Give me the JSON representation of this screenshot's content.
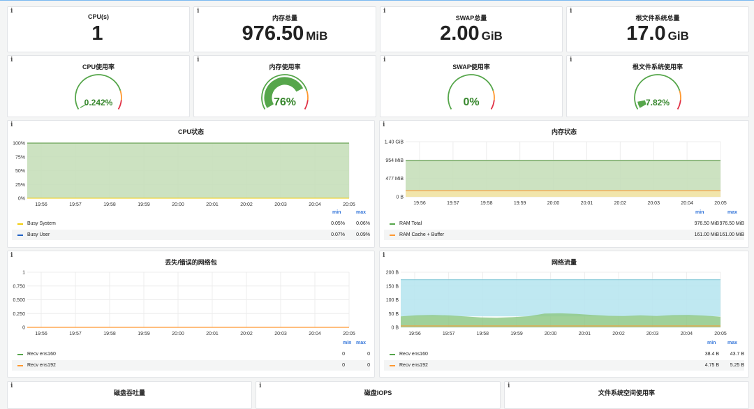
{
  "stats": [
    {
      "title": "CPU(s)",
      "value": "1",
      "unit": ""
    },
    {
      "title": "内存总量",
      "value": "976.50",
      "unit": "MiB"
    },
    {
      "title": "SWAP总量",
      "value": "2.00",
      "unit": "GiB"
    },
    {
      "title": "根文件系统总量",
      "value": "17.0",
      "unit": "GiB"
    }
  ],
  "gauges": [
    {
      "title": "CPU使用率",
      "value_text": "0.242%",
      "value": 0.242
    },
    {
      "title": "内存使用率",
      "value_text": "76%",
      "value": 76
    },
    {
      "title": "SWAP使用率",
      "value_text": "0%",
      "value": 0
    },
    {
      "title": "根文件系统使用率",
      "value_text": "7.82%",
      "value": 7.82
    }
  ],
  "info_icon": "i",
  "x_ticks": [
    "19:56",
    "19:57",
    "19:58",
    "19:59",
    "20:00",
    "20:01",
    "20:02",
    "20:03",
    "20:04",
    "20:05"
  ],
  "legend_min_label": "min",
  "legend_max_label": "max",
  "colors": {
    "green": "#56a64b",
    "yellow": "#f2cc0c",
    "orange": "#ff9830",
    "blue": "#1f60c4",
    "cyan": "#b8e6ef",
    "red": "#e02f44"
  },
  "charts": {
    "cpu": {
      "title": "CPU状态",
      "y_ticks": [
        "100%",
        "75%",
        "50%",
        "25%",
        "0%"
      ],
      "legend": [
        {
          "name": "Busy System",
          "min": "0.05%",
          "max": "0.06%",
          "color": "#f2cc0c"
        },
        {
          "name": "Busy User",
          "min": "0.07%",
          "max": "0.09%",
          "color": "#1f60c4"
        }
      ]
    },
    "mem": {
      "title": "内存状态",
      "y_ticks": [
        "1.40 GiB",
        "954 MiB",
        "477 MiB",
        "0 B"
      ],
      "legend": [
        {
          "name": "RAM Total",
          "min": "976.50 MiB",
          "max": "976.50 MiB",
          "color": "#56a64b"
        },
        {
          "name": "RAM Cache + Buffer",
          "min": "161.00 MiB",
          "max": "161.00 MiB",
          "color": "#ff9830"
        }
      ]
    },
    "pkt": {
      "title": "丢失/错误的网络包",
      "y_ticks": [
        "1",
        "0.750",
        "0.500",
        "0.250",
        "0"
      ],
      "legend": [
        {
          "name": "Recv ens160",
          "min": "0",
          "max": "0",
          "color": "#56a64b"
        },
        {
          "name": "Recv ens192",
          "min": "0",
          "max": "0",
          "color": "#ff9830"
        }
      ]
    },
    "net": {
      "title": "网络流量",
      "y_ticks": [
        "200 B",
        "150 B",
        "100 B",
        "50 B",
        "0 B"
      ],
      "legend": [
        {
          "name": "Recv ens160",
          "min": "38.4 B",
          "max": "43.7 B",
          "color": "#56a64b"
        },
        {
          "name": "Recv ens192",
          "min": "4.75 B",
          "max": "5.25 B",
          "color": "#ff9830"
        }
      ]
    }
  },
  "bottom_titles": [
    "磁盘吞吐量",
    "磁盘IOPS",
    "文件系统空间使用率"
  ]
}
